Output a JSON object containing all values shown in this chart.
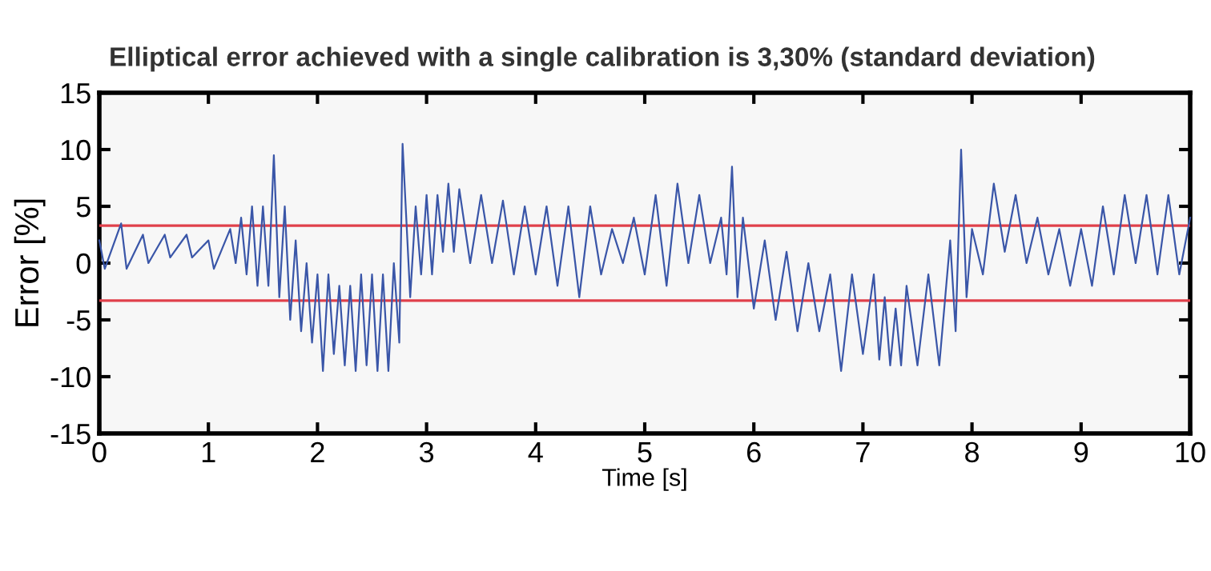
{
  "chart_data": {
    "type": "line",
    "title": "Elliptical error achieved with a single calibration is 3,30% (standard deviation)",
    "xlabel": "Time [s]",
    "ylabel": "Error [%]",
    "xlim": [
      0,
      10
    ],
    "ylim": [
      -15,
      15
    ],
    "xticks": [
      0,
      1,
      2,
      3,
      4,
      5,
      6,
      7,
      8,
      9,
      10
    ],
    "yticks": [
      -15,
      -10,
      -5,
      0,
      5,
      10,
      15
    ],
    "grid": false,
    "legend": false,
    "line_style": "solid",
    "marker": "none",
    "series": [
      {
        "color": "#3a56a8",
        "x": [
          0,
          0.05,
          0.2,
          0.25,
          0.4,
          0.45,
          0.6,
          0.65,
          0.8,
          0.85,
          1.0,
          1.05,
          1.2,
          1.25,
          1.3,
          1.35,
          1.4,
          1.45,
          1.5,
          1.55,
          1.6,
          1.65,
          1.7,
          1.75,
          1.8,
          1.85,
          1.9,
          1.95,
          2.0,
          2.05,
          2.1,
          2.15,
          2.2,
          2.25,
          2.3,
          2.35,
          2.4,
          2.45,
          2.5,
          2.55,
          2.6,
          2.65,
          2.7,
          2.75,
          2.78,
          2.85,
          2.9,
          2.95,
          3.0,
          3.05,
          3.1,
          3.15,
          3.2,
          3.25,
          3.3,
          3.4,
          3.5,
          3.6,
          3.7,
          3.8,
          3.9,
          4.0,
          4.1,
          4.2,
          4.3,
          4.4,
          4.5,
          4.6,
          4.7,
          4.8,
          4.9,
          5.0,
          5.1,
          5.2,
          5.3,
          5.4,
          5.5,
          5.6,
          5.7,
          5.75,
          5.8,
          5.85,
          5.9,
          6.0,
          6.1,
          6.2,
          6.3,
          6.4,
          6.5,
          6.6,
          6.7,
          6.8,
          6.9,
          7.0,
          7.1,
          7.15,
          7.2,
          7.25,
          7.3,
          7.35,
          7.4,
          7.5,
          7.6,
          7.7,
          7.8,
          7.85,
          7.9,
          7.95,
          8.0,
          8.1,
          8.2,
          8.3,
          8.4,
          8.5,
          8.6,
          8.7,
          8.8,
          8.9,
          9.0,
          9.1,
          9.2,
          9.3,
          9.4,
          9.5,
          9.6,
          9.7,
          9.8,
          9.9,
          10.0
        ],
        "values": [
          2,
          -0.5,
          3.5,
          -0.5,
          2.5,
          0,
          2.5,
          0.5,
          2.5,
          0.5,
          2,
          -0.5,
          3,
          0,
          4,
          -1,
          5,
          -2,
          5,
          -2,
          9.5,
          -3,
          5,
          -5,
          2,
          -6,
          0,
          -7,
          -1,
          -9.5,
          -1,
          -8,
          -2,
          -9,
          -2,
          -9.5,
          -1,
          -9,
          -1,
          -9.5,
          -1,
          -9.5,
          0,
          -7,
          10.5,
          -3,
          5,
          -1,
          6,
          -1,
          6,
          1,
          7,
          1,
          6.5,
          0,
          6,
          0,
          5.5,
          -1,
          5,
          -1,
          5,
          -2,
          5,
          -3,
          5,
          -1,
          3,
          0,
          4,
          -1,
          6,
          -2,
          7,
          0,
          6,
          0,
          4,
          -1,
          8.5,
          -3,
          4,
          -4,
          2,
          -5,
          1,
          -6,
          0,
          -6,
          -1,
          -9.5,
          -1,
          -8,
          -1,
          -8.5,
          -3,
          -9,
          -4,
          -9,
          -2,
          -9,
          -1,
          -9,
          2,
          -6,
          10,
          -3,
          3,
          -1,
          7,
          1,
          6,
          0,
          4,
          -1,
          3,
          -2,
          3,
          -2,
          5,
          -1,
          6,
          0,
          6,
          -1,
          6,
          -1,
          4
        ]
      }
    ],
    "ref_lines": [
      {
        "axis": "y",
        "value": 3.3,
        "color": "#e0404a"
      },
      {
        "axis": "y",
        "value": -3.3,
        "color": "#e0404a"
      }
    ]
  }
}
